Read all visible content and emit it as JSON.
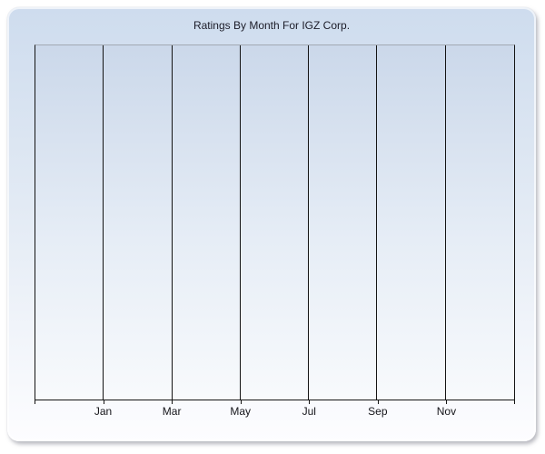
{
  "window": {
    "background_color": "#ffffff"
  },
  "chart": {
    "title": "Ratings By Month For IGZ Corp.",
    "colors": {
      "title_text": "#1c1c28",
      "axis_label_text": "#15151a",
      "gridline": "#141414",
      "plot_top_border": "#a3a9b3",
      "panel_gradient_top": "#cedcee",
      "panel_gradient_bottom": "#fdfdff",
      "plot_gradient_top": "#cbd8ea",
      "plot_gradient_bottom": "#f8fafc"
    }
  },
  "chart_data": {
    "type": "line",
    "title": "Ratings By Month For IGZ Corp.",
    "categories": [
      "Jan",
      "Mar",
      "May",
      "Jul",
      "Sep",
      "Nov"
    ],
    "series": [],
    "xlabel": "",
    "ylabel": "",
    "x_intervals": 7,
    "x_tick_count": 8,
    "grid": "vertical-only",
    "legend": "none",
    "layout_note": "empty plot area, no data series drawn, no y-axis tick labels"
  }
}
